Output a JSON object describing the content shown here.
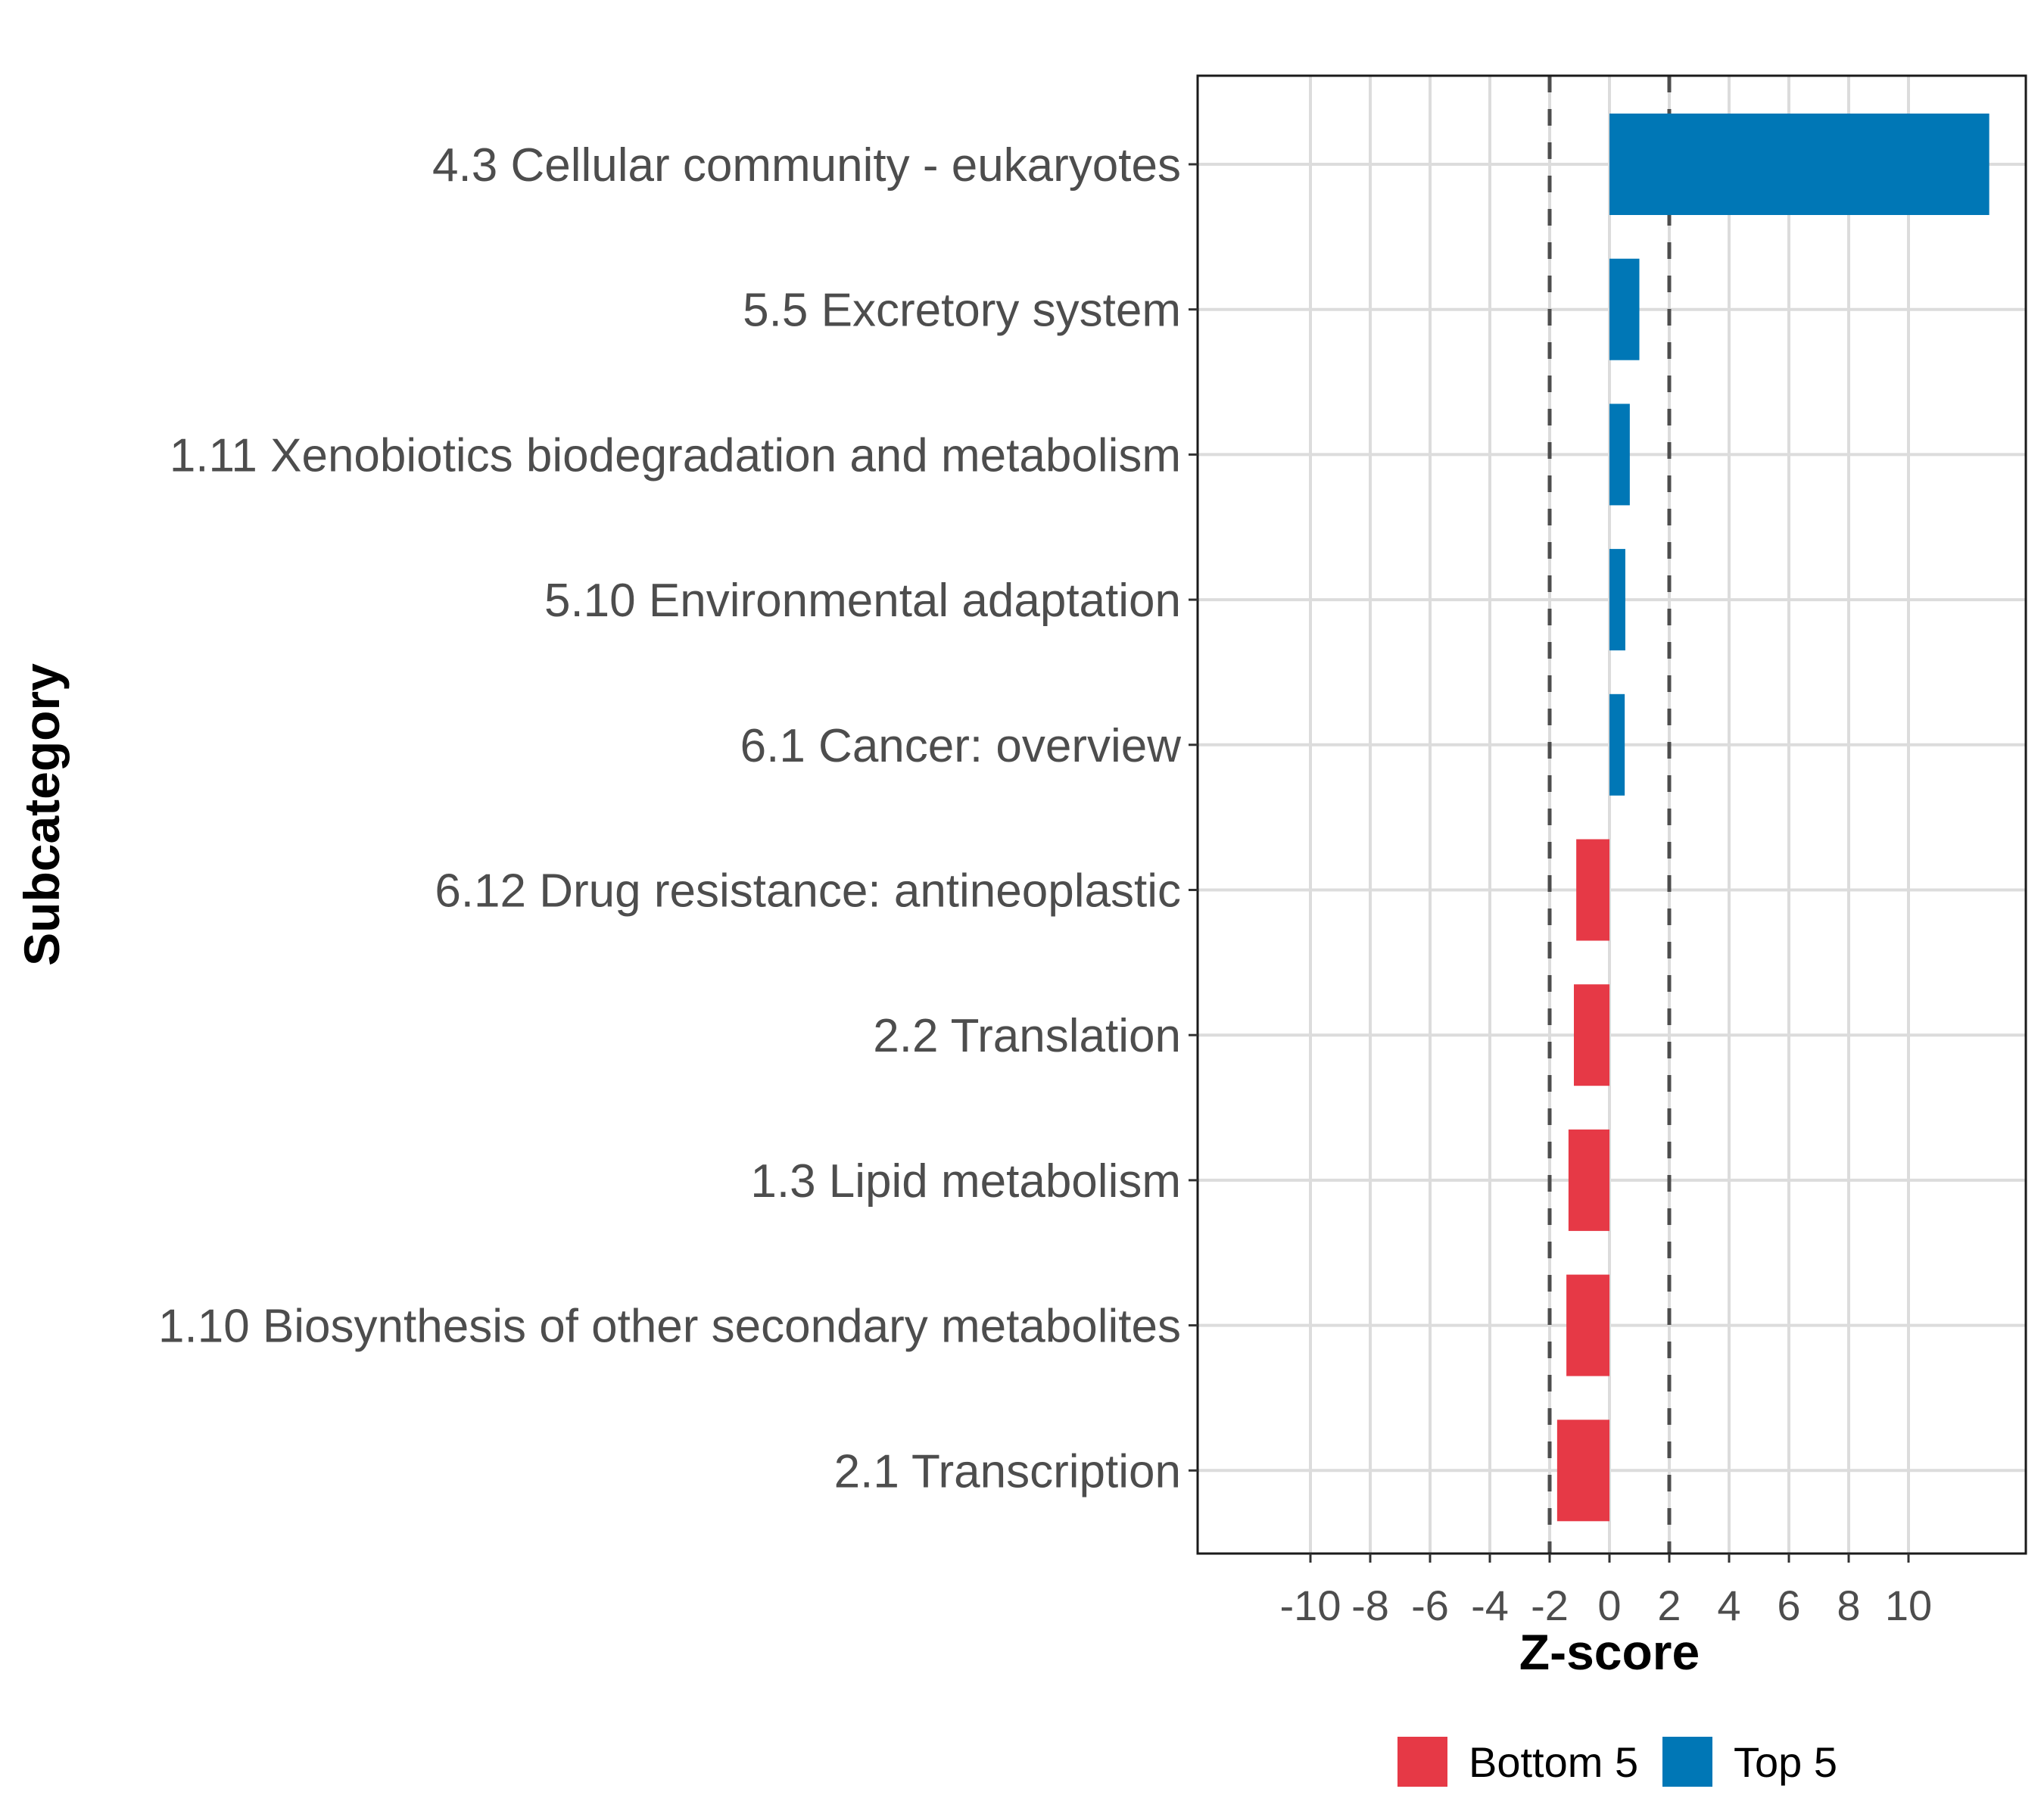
{
  "chart_data": {
    "type": "bar",
    "orientation": "horizontal",
    "title": "",
    "xlabel": "Z-score",
    "ylabel": "Subcategory",
    "xlim": [
      -13.3,
      13.3
    ],
    "xticks": [
      -10,
      -8,
      -6,
      -4,
      -2,
      0,
      2,
      4,
      6,
      8,
      10
    ],
    "xtick_labels": [
      "-10",
      "-8",
      "-6",
      "-4",
      "-2",
      "0",
      "2",
      "4",
      "6",
      "8",
      "10"
    ],
    "reference_lines": [
      -2,
      2
    ],
    "grid": true,
    "legend_position": "bottom",
    "categories": [
      "4.3 Cellular community - eukaryotes",
      "5.5 Excretory system",
      "1.11 Xenobiotics biodegradation and metabolism",
      "5.10 Environmental adaptation",
      "6.1 Cancer: overview",
      "6.12 Drug resistance: antineoplastic",
      "2.2 Translation",
      "1.3 Lipid metabolism",
      "1.10 Biosynthesis of other secondary metabolites",
      "2.1 Transcription"
    ],
    "values": [
      12.7,
      1.0,
      0.68,
      0.53,
      0.51,
      -1.11,
      -1.19,
      -1.37,
      -1.44,
      -1.75
    ],
    "groups": [
      "Top 5",
      "Top 5",
      "Top 5",
      "Top 5",
      "Top 5",
      "Bottom 5",
      "Bottom 5",
      "Bottom 5",
      "Bottom 5",
      "Bottom 5"
    ],
    "series": [
      {
        "name": "Bottom 5",
        "color": "#E63946"
      },
      {
        "name": "Top 5",
        "color": "#0077B6"
      }
    ]
  }
}
